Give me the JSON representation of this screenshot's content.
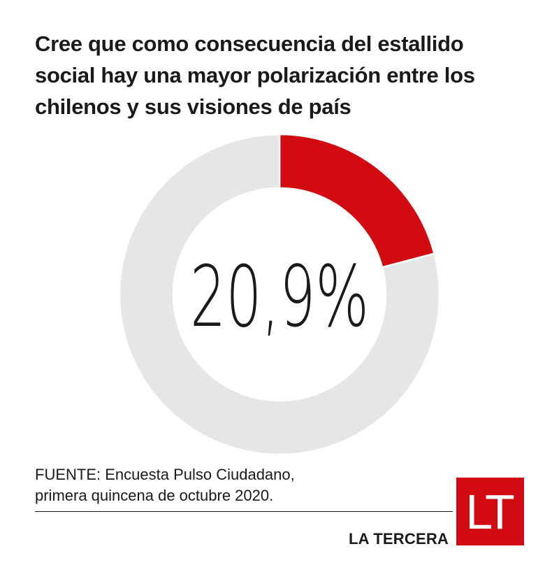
{
  "title_lines": [
    "Cree que como consecuencia del estallido",
    "social hay una mayor polarización entre los",
    "chilenos y sus visiones de país"
  ],
  "chart_data": {
    "type": "pie",
    "variant": "donut",
    "value_label": "20,9%",
    "slices": [
      {
        "value": 20.9,
        "color": "#d20a11"
      },
      {
        "value": 79.1,
        "color": "#e6e6e6"
      }
    ]
  },
  "source_lines": [
    "FUENTE: Encuesta Pulso Ciudadano,",
    "primera quincena de octubre 2020."
  ],
  "brand": {
    "name": "LA TERCERA",
    "logo_text": "LT",
    "logo_color": "#d20a11"
  }
}
